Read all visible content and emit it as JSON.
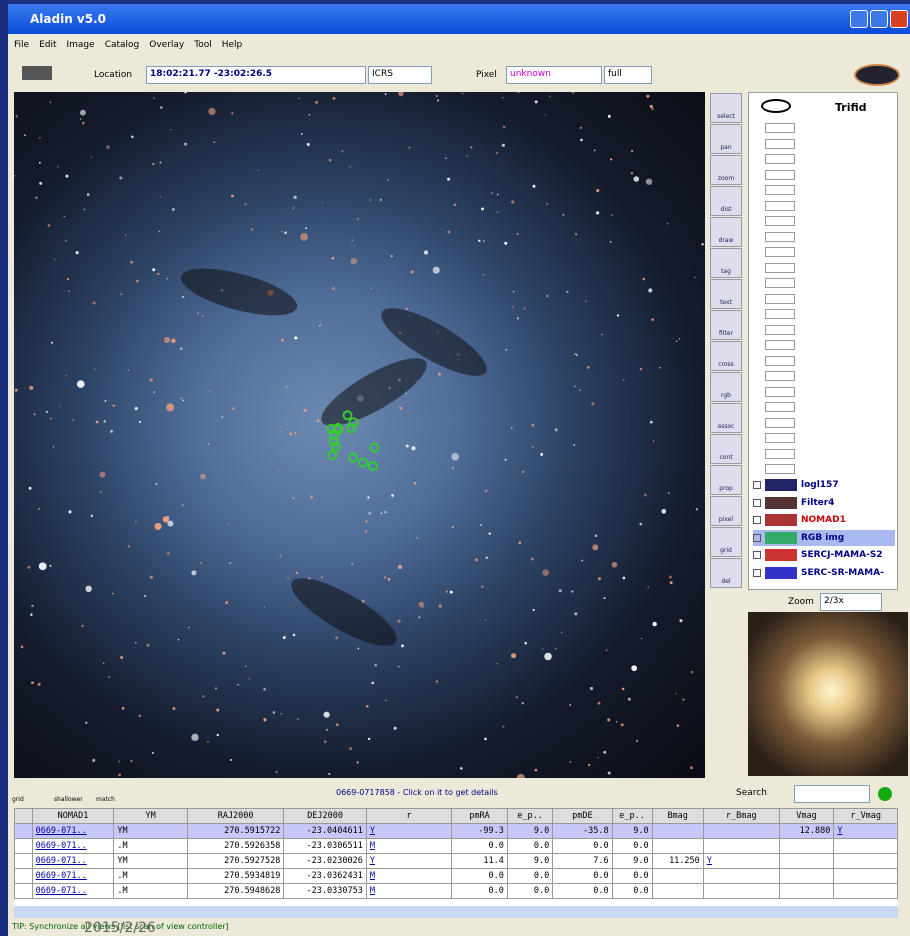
{
  "window": {
    "title": "Aladin v5.0"
  },
  "menu": [
    "File",
    "Edit",
    "Image",
    "Catalog",
    "Overlay",
    "Tool",
    "Help"
  ],
  "toolbar": {
    "location_label": "Location",
    "location": "18:02:21.77 -23:02:26.5",
    "frame": "ICRS",
    "pixel_label": "Pixel",
    "pixel": "unknown",
    "pixel_mode": "full"
  },
  "tools": [
    "select",
    "pan",
    "zoom",
    "dist",
    "draw",
    "tag",
    "text",
    "filter",
    "cross",
    "rgb",
    "assoc",
    "cont",
    "prop",
    "pixel",
    "grid",
    "del"
  ],
  "stack": {
    "title": "Trifid",
    "layers": [
      "logl157",
      "Filter4",
      "NOMAD1",
      "RGB img",
      "SERCJ-MAMA-S2",
      "SERC-SR-MAMA-"
    ]
  },
  "zoom": {
    "label": "Zoom",
    "value": "2/3x"
  },
  "status": {
    "left": [
      "grid",
      "shallower",
      "match"
    ],
    "message": "0669-0717858 - Click on it to get details",
    "search": "Search"
  },
  "table": {
    "headers": [
      "NOMAD1",
      "YM",
      "RAJ2000",
      "DEJ2000",
      "r",
      "pmRA",
      "e_p..",
      "pmDE",
      "e_p..",
      "Bmag",
      "r_Bmag",
      "Vmag",
      "r_Vmag"
    ],
    "rows": [
      [
        "0669-071..",
        "YM",
        "270.5915722",
        "-23.0404611",
        "Y",
        "-99.3",
        "9.0",
        "-35.8",
        "9.0",
        "",
        "",
        "12.880",
        "Y"
      ],
      [
        "0669-071..",
        ".M",
        "270.5926358",
        "-23.0306511",
        "M",
        "0.0",
        "0.0",
        "0.0",
        "0.0",
        "",
        "",
        "",
        ""
      ],
      [
        "0669-071..",
        "YM",
        "270.5927528",
        "-23.0230026",
        "Y",
        "11.4",
        "9.0",
        "7.6",
        "9.0",
        "11.250",
        "Y",
        "",
        ""
      ],
      [
        "0669-071..",
        ".M",
        "270.5934819",
        "-23.0362431",
        "M",
        "0.0",
        "0.0",
        "0.0",
        "0.0",
        "",
        "",
        "",
        ""
      ],
      [
        "0669-071..",
        ".M",
        "270.5948628",
        "-23.0330753",
        "M",
        "0.0",
        "0.0",
        "0.0",
        "0.0",
        "",
        "",
        "",
        ""
      ]
    ]
  },
  "tip": "TIP: Synchronize all views [list scan of view controller]",
  "watermark": "2015/2/26"
}
